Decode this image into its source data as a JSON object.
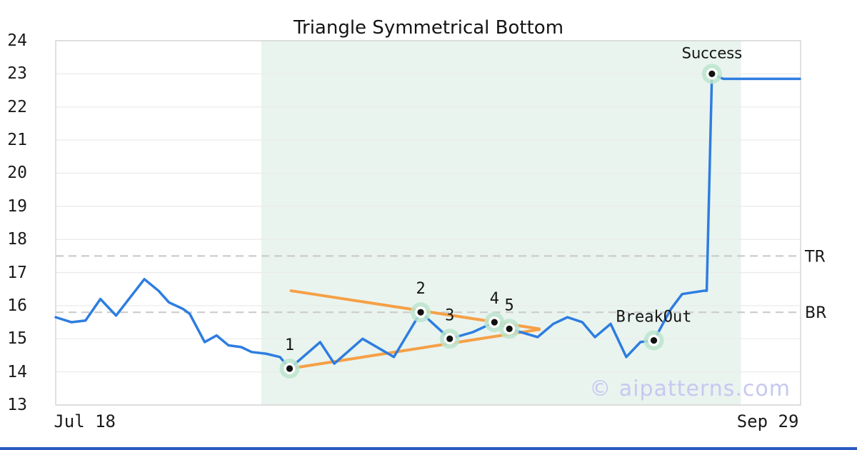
{
  "title": "Triangle Symmetrical Bottom",
  "watermark": "© aipatterns.com",
  "colors": {
    "price_line": "#2e7de0",
    "trendline": "#f6a046",
    "zone_fill": "#e9f4ef",
    "halo": "#bce4cd",
    "dot": "#111111",
    "dot_ring": "#ffffff",
    "gridline": "#ebebeb",
    "spine": "#d5d5d5",
    "level_line": "#cccccc",
    "text": "#141414",
    "watermark": "#c7c8f0",
    "bottom_bar": "#2a59c0"
  },
  "axes": {
    "y_min": 13,
    "y_max": 24,
    "y_ticks": [
      24,
      23,
      22,
      21,
      20,
      19,
      18,
      17,
      16,
      15,
      14,
      13
    ],
    "x_ticks": [
      {
        "label": "Jul 18",
        "pos": 0.039
      },
      {
        "label": "Sep 29",
        "pos": 0.956
      }
    ]
  },
  "levels": [
    {
      "label": "TR",
      "value": 17.5
    },
    {
      "label": "BR",
      "value": 15.8
    }
  ],
  "chart_data": {
    "type": "line",
    "title": "Triangle Symmetrical Bottom",
    "ylim": [
      13,
      24
    ],
    "grid": "horizontal",
    "pattern_zone": {
      "start": 0.276,
      "end": 0.92
    },
    "series": [
      {
        "name": "price",
        "points": [
          [
            0.0,
            15.65
          ],
          [
            0.021,
            15.5
          ],
          [
            0.04,
            15.55
          ],
          [
            0.06,
            16.2
          ],
          [
            0.081,
            15.7
          ],
          [
            0.119,
            16.8
          ],
          [
            0.138,
            16.45
          ],
          [
            0.152,
            16.1
          ],
          [
            0.171,
            15.9
          ],
          [
            0.18,
            15.75
          ],
          [
            0.2,
            14.9
          ],
          [
            0.216,
            15.1
          ],
          [
            0.232,
            14.8
          ],
          [
            0.249,
            14.75
          ],
          [
            0.263,
            14.6
          ],
          [
            0.282,
            14.55
          ],
          [
            0.301,
            14.45
          ],
          [
            0.314,
            14.1
          ],
          [
            0.355,
            14.9
          ],
          [
            0.374,
            14.25
          ],
          [
            0.412,
            15.0
          ],
          [
            0.454,
            14.45
          ],
          [
            0.49,
            15.8
          ],
          [
            0.529,
            15.0
          ],
          [
            0.56,
            15.2
          ],
          [
            0.589,
            15.5
          ],
          [
            0.609,
            15.3
          ],
          [
            0.647,
            15.05
          ],
          [
            0.668,
            15.45
          ],
          [
            0.687,
            15.65
          ],
          [
            0.707,
            15.5
          ],
          [
            0.724,
            15.05
          ],
          [
            0.745,
            15.45
          ],
          [
            0.766,
            14.45
          ],
          [
            0.785,
            14.9
          ],
          [
            0.803,
            14.95
          ],
          [
            0.826,
            15.9
          ],
          [
            0.841,
            16.35
          ],
          [
            0.87,
            16.45
          ],
          [
            0.874,
            16.45
          ],
          [
            0.881,
            23.0
          ],
          [
            0.896,
            22.85
          ],
          [
            0.999,
            22.85
          ]
        ]
      }
    ],
    "trendlines": [
      {
        "name": "upper",
        "from": [
          0.316,
          16.45
        ],
        "to": [
          0.649,
          15.3
        ]
      },
      {
        "name": "lower",
        "from": [
          0.314,
          14.1
        ],
        "to": [
          0.649,
          15.28
        ]
      }
    ],
    "markers": [
      {
        "label": "1",
        "kind": "pivot",
        "pos": 0.314,
        "value": 14.1
      },
      {
        "label": "2",
        "kind": "pivot",
        "pos": 0.49,
        "value": 15.8
      },
      {
        "label": "3",
        "kind": "pivot",
        "pos": 0.529,
        "value": 15.0
      },
      {
        "label": "4",
        "kind": "pivot",
        "pos": 0.589,
        "value": 15.5
      },
      {
        "label": "5",
        "kind": "pivot",
        "pos": 0.609,
        "value": 15.3
      },
      {
        "label": "BreakOut",
        "kind": "breakout",
        "pos": 0.803,
        "value": 14.95
      },
      {
        "label": "Success",
        "kind": "success",
        "pos": 0.881,
        "value": 23.0
      }
    ]
  }
}
